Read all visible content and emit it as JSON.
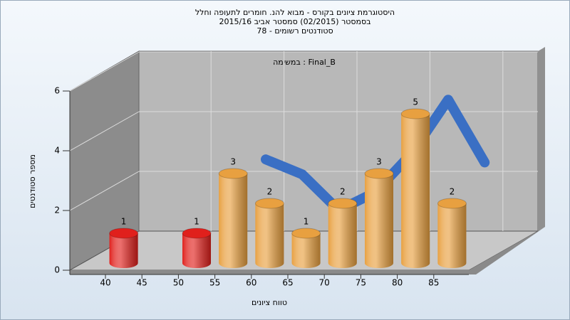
{
  "chart_data": {
    "type": "bar",
    "title": [
      "היסטוגרמת ציונים בקורס - מבוא להנ. חומרים לתעופה וחלל",
      "בסמסטר (02/2015) סמסטר אביב 2015/16",
      "סטודנטים רשומים - 78"
    ],
    "annotation": "במשימה : Final_B",
    "x_label": "טווח ציונים",
    "y_label": "מספר סטודנטים",
    "categories": [
      "40",
      "45",
      "50",
      "55",
      "60",
      "65",
      "70",
      "75",
      "80",
      "85"
    ],
    "values": [
      1,
      0,
      1,
      3,
      2,
      1,
      2,
      3,
      5,
      2
    ],
    "colors": [
      "#e0201c",
      "#e0201c",
      "#e0201c",
      "#e8a040",
      "#e8a040",
      "#e8a040",
      "#e8a040",
      "#e8a040",
      "#e8a040",
      "#e8a040"
    ],
    "trend_values": [
      null,
      null,
      2.4,
      1.9,
      0.7,
      1.3,
      2.6,
      4.4,
      2.3,
      null
    ],
    "trend_color": "#3a6fc4",
    "ylim": [
      0,
      6
    ],
    "yticks": [
      0,
      2,
      4,
      6
    ],
    "grid": true
  }
}
